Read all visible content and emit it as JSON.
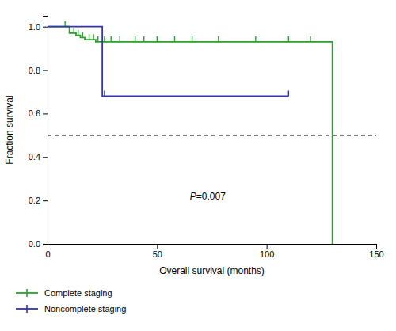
{
  "chart_data": {
    "type": "step",
    "xlabel": "Overall survival (months)",
    "ylabel": "Fraction survival",
    "xlim": [
      0,
      150
    ],
    "ylim": [
      0.0,
      1.05
    ],
    "xticks": [
      0,
      50,
      100,
      150
    ],
    "yticks": [
      {
        "value": 0.0,
        "label": "0.0"
      },
      0.2,
      0.4,
      0.6,
      0.8,
      {
        "value": 1.0,
        "label": "1.0"
      }
    ],
    "grid": false,
    "legend": "bottom",
    "hline_y": 0.5,
    "annotations": [
      {
        "text": "P=0.007",
        "x": 65,
        "y": 0.22
      }
    ],
    "series": [
      {
        "name": "Complete staging",
        "color": "#2ca02c",
        "x": [
          0,
          8,
          10,
          13,
          15,
          17,
          20,
          22,
          25,
          28,
          32,
          35,
          38,
          42,
          48,
          55,
          62,
          70,
          80,
          95,
          105,
          115,
          130,
          130
        ],
        "values": [
          1.0,
          1.0,
          0.97,
          0.96,
          0.95,
          0.94,
          0.94,
          0.93,
          0.93,
          0.93,
          0.93,
          0.93,
          0.93,
          0.93,
          0.93,
          0.93,
          0.93,
          0.93,
          0.93,
          0.93,
          0.93,
          0.93,
          0.93,
          0.0
        ],
        "censor_x": [
          8,
          12,
          14,
          16,
          19,
          21,
          23,
          26,
          29,
          33,
          40,
          44,
          50,
          58,
          66,
          78,
          95,
          110,
          120
        ],
        "censor_values": [
          1.0,
          0.97,
          0.96,
          0.95,
          0.94,
          0.94,
          0.93,
          0.93,
          0.93,
          0.93,
          0.93,
          0.93,
          0.93,
          0.93,
          0.93,
          0.93,
          0.93,
          0.93,
          0.93
        ]
      },
      {
        "name": "Noncomplete staging",
        "color": "#3333aa",
        "x": [
          0,
          22,
          25,
          110,
          110
        ],
        "values": [
          1.0,
          1.0,
          0.68,
          0.68,
          0.68
        ],
        "censor_x": [
          26,
          110
        ],
        "censor_values": [
          0.68,
          0.68
        ]
      }
    ]
  }
}
